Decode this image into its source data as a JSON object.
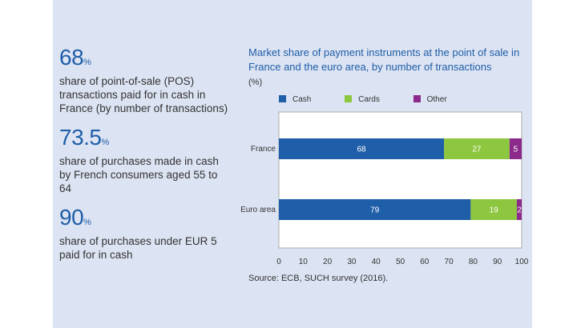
{
  "stats": [
    {
      "value": "68",
      "unit": "%",
      "text": "share of point-of-sale (POS) transactions paid for in cash in France (by number of transactions)"
    },
    {
      "value": "73.5",
      "unit": "%",
      "text": "share of purchases made in cash by French consumers aged 55 to 64"
    },
    {
      "value": "90",
      "unit": "%",
      "text": "share of purchases under EUR 5 paid for in cash"
    }
  ],
  "source": "Source: ECB, SUCH survey (2016).",
  "chart_data": {
    "type": "bar",
    "orientation": "horizontal",
    "stacked": true,
    "title": "Market share of payment instruments at the point of sale in France and the euro area, by number of transactions",
    "unit_label": "(%)",
    "categories": [
      "France",
      "Euro area"
    ],
    "series": [
      {
        "name": "Cash",
        "color": "#1f5ea8",
        "values": [
          68,
          79
        ]
      },
      {
        "name": "Cards",
        "color": "#8dc63f",
        "values": [
          27,
          19
        ]
      },
      {
        "name": "Other",
        "color": "#8b2a8b",
        "values": [
          5,
          2
        ]
      }
    ],
    "xlim": [
      0,
      100
    ],
    "xticks": [
      0,
      10,
      20,
      30,
      40,
      50,
      60,
      70,
      80,
      90,
      100
    ],
    "legend_position": "top",
    "grid": false
  }
}
